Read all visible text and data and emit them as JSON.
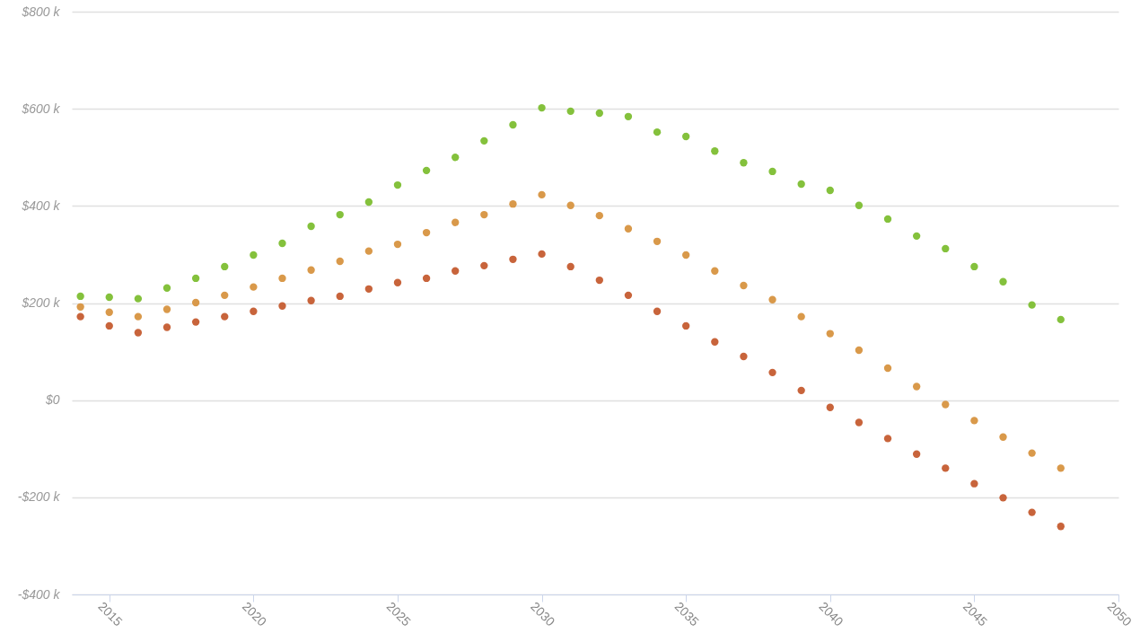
{
  "chart_data": {
    "type": "scatter",
    "marker": "circle",
    "grid": "y",
    "x": [
      2014,
      2015,
      2016,
      2017,
      2018,
      2019,
      2020,
      2021,
      2022,
      2023,
      2024,
      2025,
      2026,
      2027,
      2028,
      2029,
      2030,
      2031,
      2032,
      2033,
      2034,
      2035,
      2036,
      2037,
      2038,
      2039,
      2040,
      2041,
      2042,
      2043,
      2044,
      2045,
      2046,
      2047,
      2048
    ],
    "xlim": [
      2013.7,
      2050
    ],
    "xticks": [
      2015,
      2020,
      2025,
      2030,
      2035,
      2040,
      2045,
      2050
    ],
    "ylim": [
      -400,
      800
    ],
    "yticks": [
      {
        "value": -400,
        "label": "-$400 k"
      },
      {
        "value": -200,
        "label": "-$200 k"
      },
      {
        "value": 0,
        "label": "$0"
      },
      {
        "value": 200,
        "label": "$200 k"
      },
      {
        "value": 400,
        "label": "$400 k"
      },
      {
        "value": 600,
        "label": "$600 k"
      },
      {
        "value": 800,
        "label": "$800 k"
      }
    ],
    "series": [
      {
        "color": "#84c13c",
        "values": [
          214,
          212,
          209,
          231,
          251,
          275,
          299,
          323,
          358,
          382,
          408,
          443,
          473,
          500,
          534,
          567,
          602,
          595,
          591,
          584,
          552,
          543,
          513,
          489,
          471,
          445,
          432,
          401,
          373,
          338,
          312,
          275,
          244,
          196,
          166
        ]
      },
      {
        "color": "#d9994a",
        "values": [
          192,
          181,
          172,
          187,
          201,
          216,
          233,
          251,
          268,
          286,
          307,
          321,
          345,
          366,
          382,
          404,
          423,
          401,
          380,
          353,
          327,
          299,
          266,
          236,
          207,
          172,
          137,
          103,
          66,
          28,
          -9,
          -42,
          -76,
          -109,
          -140
        ]
      },
      {
        "color": "#c8643b",
        "values": [
          172,
          153,
          139,
          150,
          161,
          172,
          183,
          194,
          205,
          214,
          229,
          242,
          251,
          266,
          277,
          290,
          301,
          275,
          247,
          216,
          183,
          153,
          120,
          90,
          57,
          20,
          -15,
          -46,
          -79,
          -111,
          -140,
          -172,
          -201,
          -231,
          -260
        ]
      }
    ]
  }
}
